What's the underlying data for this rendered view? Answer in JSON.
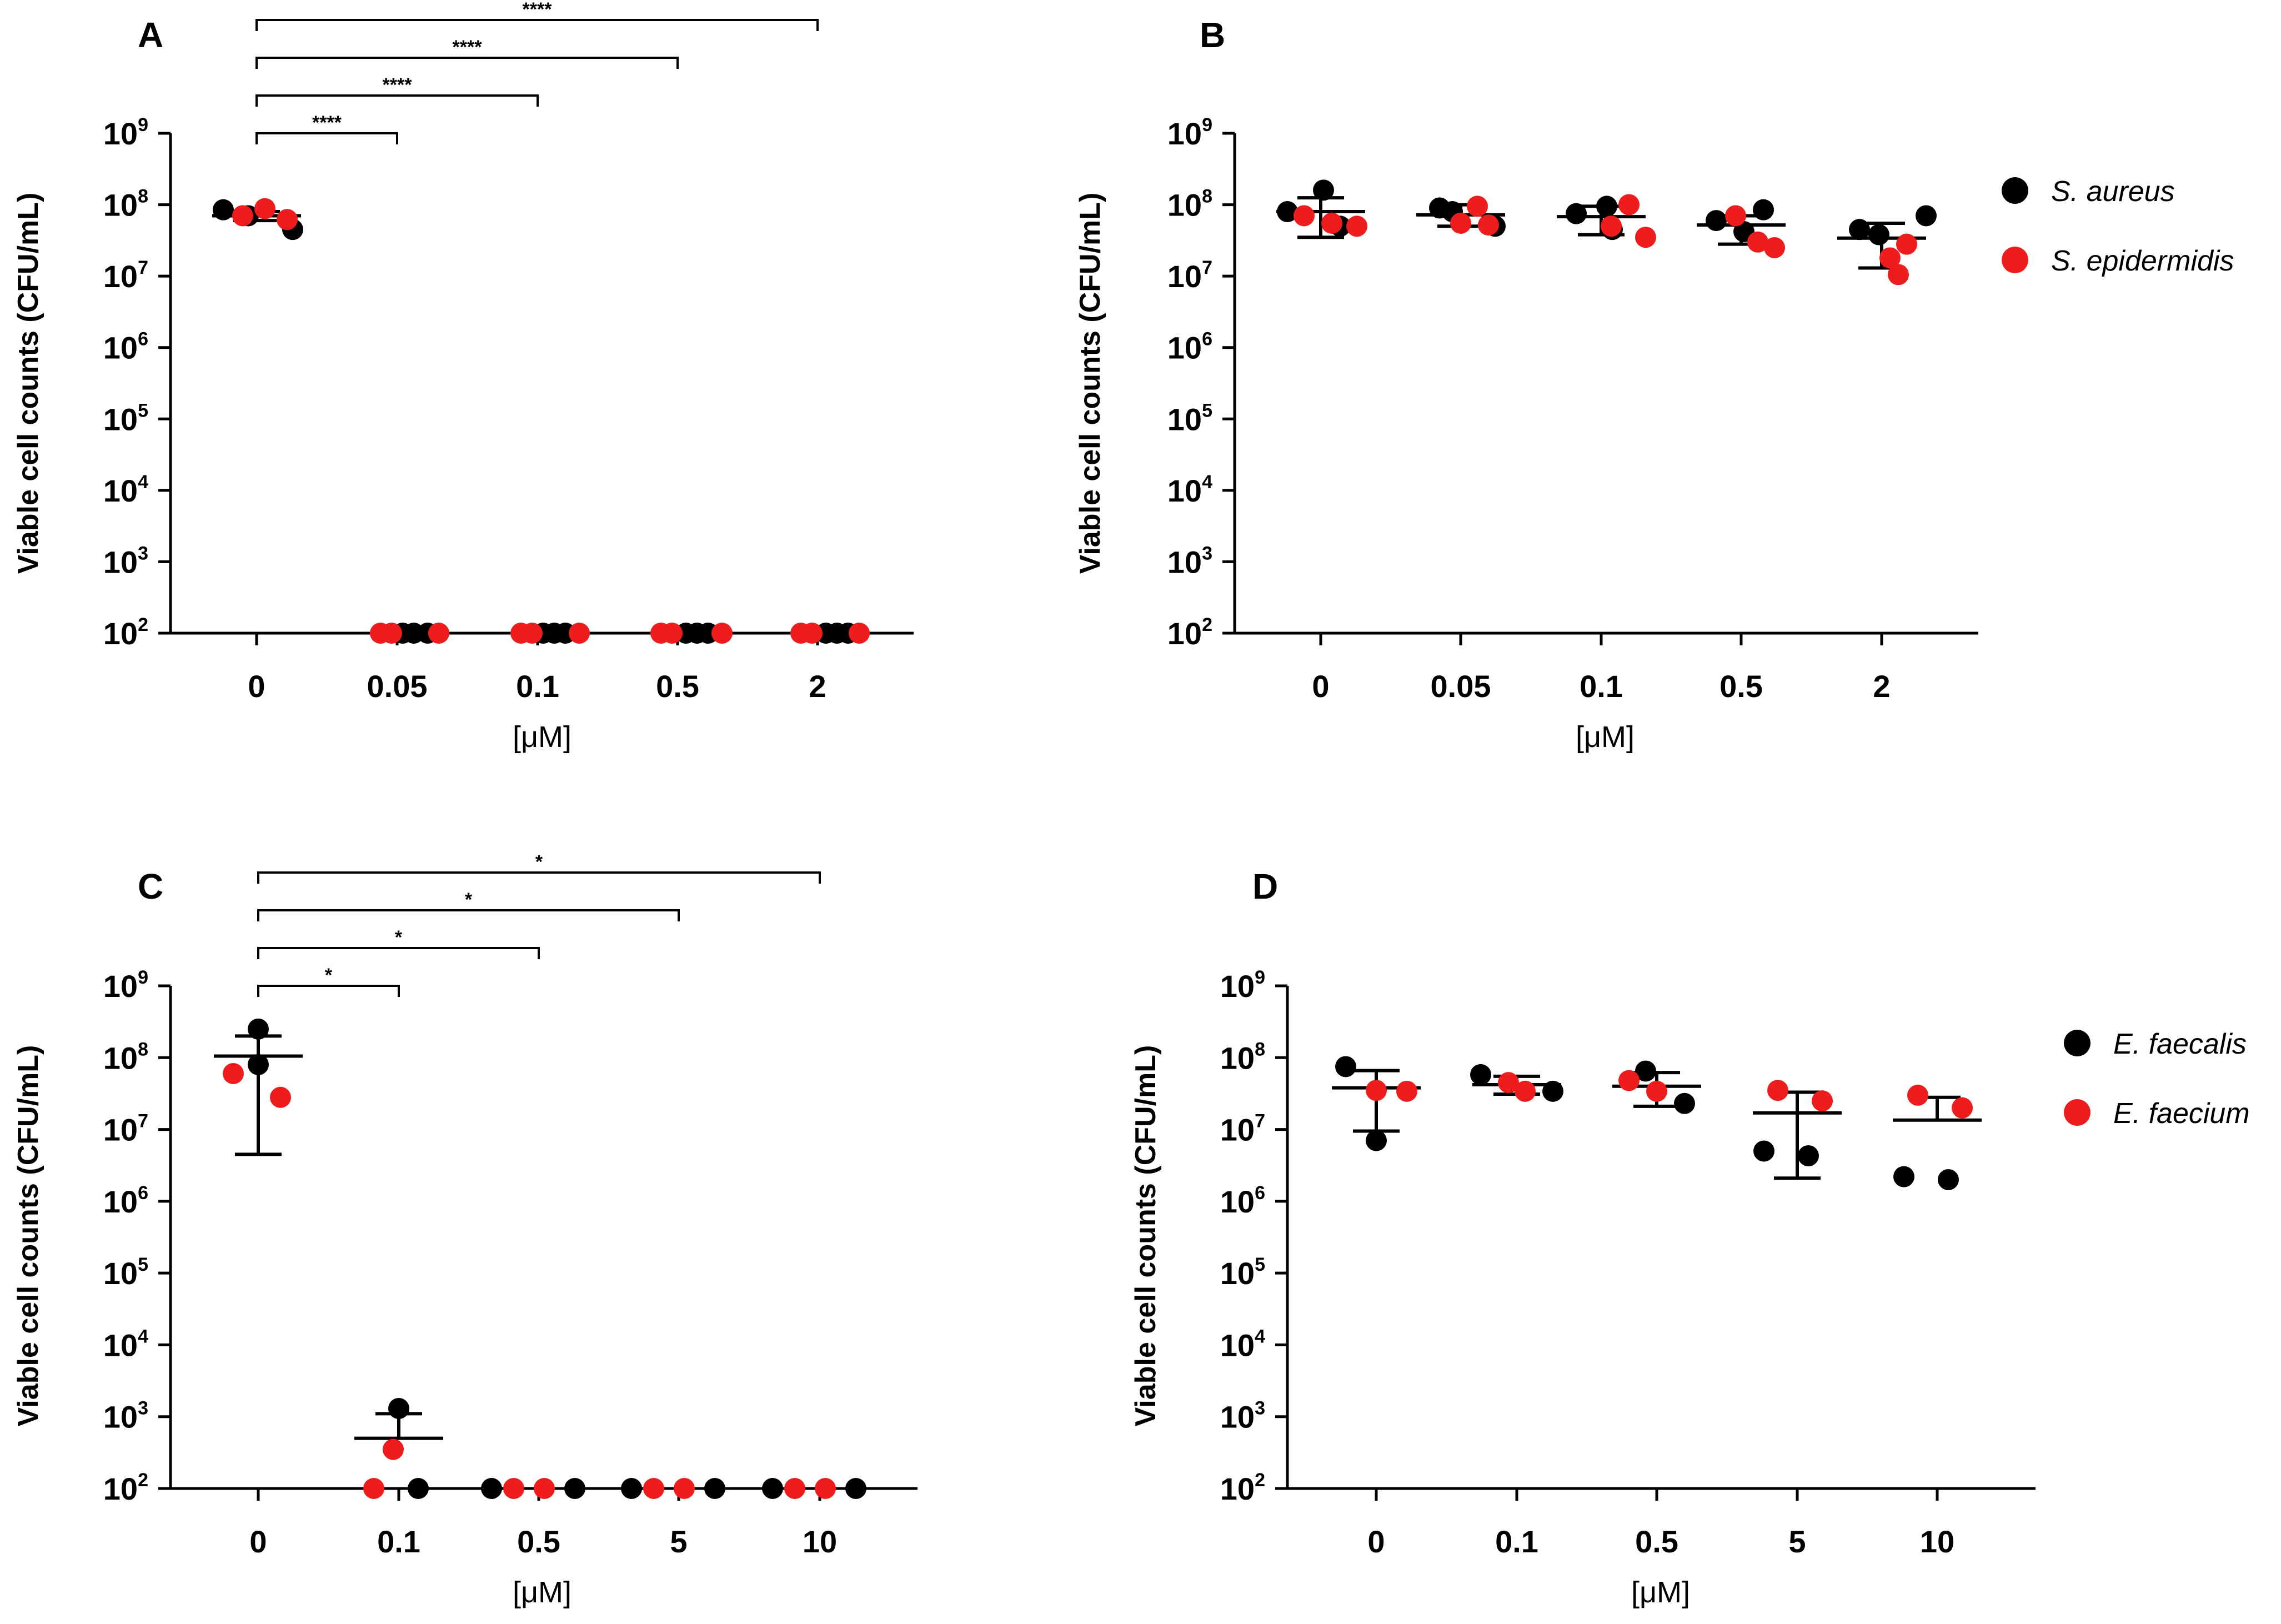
{
  "colors": {
    "series_black": "#000000",
    "series_red": "#ee1c1c"
  },
  "chart_data": [
    {
      "panel": "A",
      "type": "scatter",
      "ylabel": "Viable cell counts (CFU/mL)",
      "xlabel": "[μM]",
      "yscale": "log10",
      "ylim": [
        100,
        1000000000
      ],
      "categories": [
        "0",
        "0.05",
        "0.1",
        "0.5",
        "2"
      ],
      "series": [
        {
          "name": "S. aureus",
          "color": "#000000",
          "values": [
            [
              85000000,
              70000000,
              45000000
            ],
            [
              100,
              100,
              100
            ],
            [
              100,
              100,
              100
            ],
            [
              100,
              100,
              100
            ],
            [
              100,
              100,
              100
            ]
          ]
        },
        {
          "name": "S. epidermidis",
          "color": "#ee1c1c",
          "values": [
            [
              70000000,
              88000000,
              62000000
            ],
            [
              100,
              100,
              100
            ],
            [
              100,
              100,
              100
            ],
            [
              100,
              100,
              100
            ],
            [
              100,
              100,
              100
            ]
          ]
        }
      ],
      "mean": [
        70000000,
        null,
        null,
        null,
        null
      ],
      "sd_upper": [
        80000000,
        null,
        null,
        null,
        null
      ],
      "sd_lower": [
        60000000,
        null,
        null,
        null,
        null
      ],
      "significance": [
        {
          "from": "0",
          "to": "0.05",
          "label": "****"
        },
        {
          "from": "0",
          "to": "0.1",
          "label": "****"
        },
        {
          "from": "0",
          "to": "0.5",
          "label": "****"
        },
        {
          "from": "0",
          "to": "2",
          "label": "****"
        }
      ]
    },
    {
      "panel": "B",
      "type": "scatter",
      "ylabel": "Viable cell counts (CFU/mL)",
      "xlabel": "[μM]",
      "yscale": "log10",
      "ylim": [
        100,
        1000000000
      ],
      "categories": [
        "0",
        "0.05",
        "0.1",
        "0.5",
        "2"
      ],
      "series": [
        {
          "name": "S. aureus",
          "color": "#000000",
          "values": [
            [
              80000000,
              160000000,
              50000000
            ],
            [
              90000000,
              80000000,
              50000000
            ],
            [
              75000000,
              95000000,
              45000000
            ],
            [
              60000000,
              42000000,
              85000000
            ],
            [
              45000000,
              38000000,
              70000000
            ]
          ]
        },
        {
          "name": "S. epidermidis",
          "color": "#ee1c1c",
          "values": [
            [
              70000000,
              55000000,
              50000000
            ],
            [
              55000000,
              95000000,
              52000000
            ],
            [
              50000000,
              100000000,
              35000000
            ],
            [
              70000000,
              30000000,
              25000000
            ],
            [
              18000000,
              10500000,
              28000000
            ]
          ]
        }
      ],
      "mean": [
        80000000,
        72000000,
        68000000,
        52000000,
        34000000
      ],
      "sd_upper": [
        125000000,
        100000000,
        95000000,
        70000000,
        55000000
      ],
      "sd_lower": [
        35000000,
        50000000,
        38000000,
        28000000,
        13000000
      ],
      "legend": [
        "S. aureus",
        "S. epidermidis"
      ]
    },
    {
      "panel": "C",
      "type": "scatter",
      "ylabel": "Viable cell counts (CFU/mL)",
      "xlabel": "[μM]",
      "yscale": "log10",
      "ylim": [
        100,
        1000000000
      ],
      "categories": [
        "0",
        "0.1",
        "0.5",
        "5",
        "10"
      ],
      "series": [
        {
          "name": "E. faecalis",
          "color": "#000000",
          "values": [
            [
              250000000,
              80000000
            ],
            [
              1300,
              100
            ],
            [
              100,
              100
            ],
            [
              100,
              100
            ],
            [
              100,
              100
            ]
          ]
        },
        {
          "name": "E. faecium",
          "color": "#ee1c1c",
          "values": [
            [
              60000000,
              28000000
            ],
            [
              100,
              350
            ],
            [
              100,
              100
            ],
            [
              100,
              100
            ],
            [
              100,
              100
            ]
          ]
        }
      ],
      "mean": [
        105000000,
        500,
        null,
        null,
        null
      ],
      "sd_upper": [
        200000000,
        1100,
        null,
        null,
        null
      ],
      "sd_lower": [
        4500000,
        null,
        null,
        null,
        null
      ],
      "significance": [
        {
          "from": "0",
          "to": "0.1",
          "label": "*"
        },
        {
          "from": "0",
          "to": "0.5",
          "label": "*"
        },
        {
          "from": "0",
          "to": "5",
          "label": "*"
        },
        {
          "from": "0",
          "to": "10",
          "label": "*"
        }
      ]
    },
    {
      "panel": "D",
      "type": "scatter",
      "ylabel": "Viable cell counts (CFU/mL)",
      "xlabel": "[μM]",
      "yscale": "log10",
      "ylim": [
        100,
        1000000000
      ],
      "categories": [
        "0",
        "0.1",
        "0.5",
        "5",
        "10"
      ],
      "series": [
        {
          "name": "E. faecalis",
          "color": "#000000",
          "values": [
            [
              75000000,
              7000000
            ],
            [
              58000000,
              34000000
            ],
            [
              65000000,
              23000000
            ],
            [
              5000000,
              4300000
            ],
            [
              2200000,
              2000000
            ]
          ]
        },
        {
          "name": "E. faecium",
          "color": "#ee1c1c",
          "values": [
            [
              35000000,
              34000000
            ],
            [
              45000000,
              34000000
            ],
            [
              48000000,
              34000000
            ],
            [
              35000000,
              25000000
            ],
            [
              30000000,
              20000000
            ]
          ]
        }
      ],
      "mean": [
        38000000,
        42000000,
        40000000,
        17000000,
        13500000
      ],
      "sd_upper": [
        66000000,
        55000000,
        62000000,
        33000000,
        28000000
      ],
      "sd_lower": [
        9500000,
        31000000,
        21000000,
        2100000,
        null
      ],
      "legend": [
        "E. faecalis",
        "E. faecium"
      ]
    }
  ]
}
